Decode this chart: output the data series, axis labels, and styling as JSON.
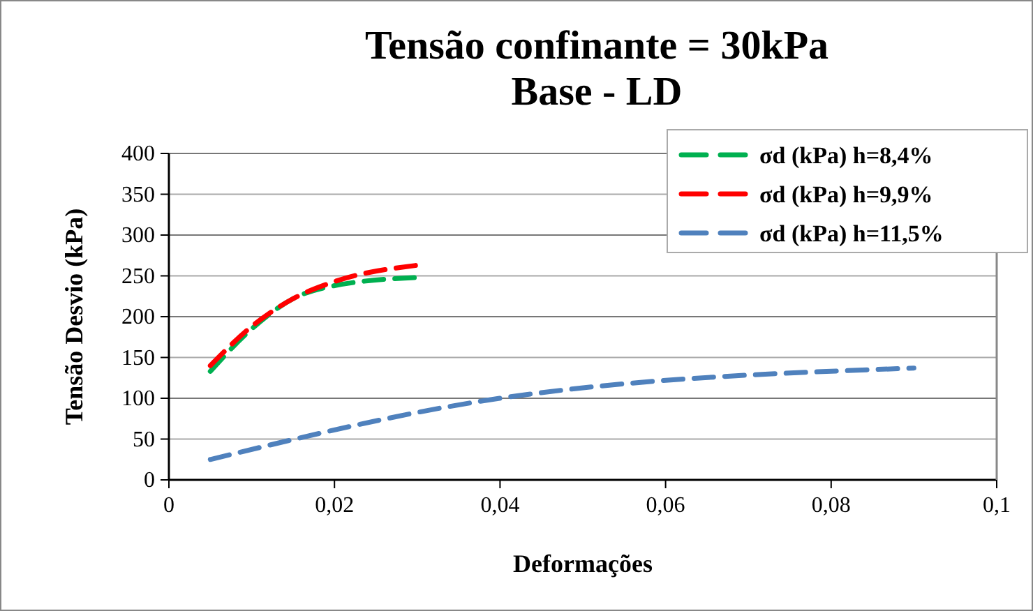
{
  "chart_data": {
    "type": "line",
    "title": "Tensão confinante = 30kPa\nBase - LD",
    "xlabel": "Deformações",
    "ylabel": "Tensão Desvio (kPa)",
    "x": [
      0.005,
      0.01,
      0.015,
      0.02,
      0.03
    ],
    "series": [
      {
        "name": "σd (kPa) h=8,4%",
        "color": "#00b050",
        "values": [
          133,
          185,
          222,
          238,
          248
        ]
      },
      {
        "name": "σd (kPa) h=9,9%",
        "color": "#ff0000",
        "values": [
          140,
          188,
          222,
          243,
          263
        ]
      },
      {
        "name": "σd (kPa) h=11,5%",
        "color": "#4f81bd",
        "x": [
          0.005,
          0.04,
          0.09
        ],
        "values": [
          25,
          100,
          137
        ]
      }
    ],
    "xlim": [
      0,
      0.1
    ],
    "xticks": [
      {
        "value": 0,
        "label": "0"
      },
      {
        "value": 0.02,
        "label": "0,02"
      },
      {
        "value": 0.04,
        "label": "0,04"
      },
      {
        "value": 0.06,
        "label": "0,06"
      },
      {
        "value": 0.08,
        "label": "0,08"
      },
      {
        "value": 0.1,
        "label": "0,1"
      }
    ],
    "ylim": [
      0,
      400
    ],
    "yticks": [
      0,
      50,
      100,
      150,
      200,
      250,
      300,
      350,
      400
    ],
    "grid": "y",
    "legend": "top right",
    "marker": "none",
    "line_style": "dashed"
  }
}
